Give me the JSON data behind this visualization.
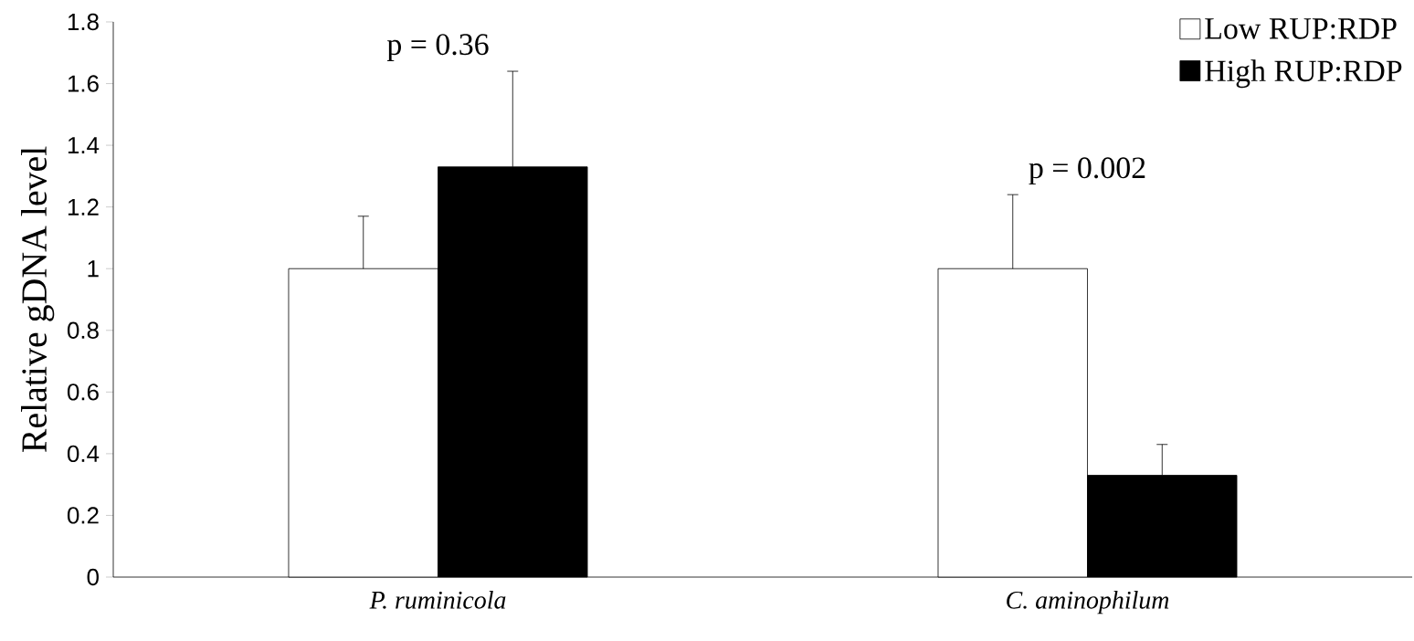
{
  "chart_data": {
    "type": "bar",
    "ylabel": "Relative gDNA level",
    "categories": [
      "P. ruminicola",
      "C. aminophilum"
    ],
    "series": [
      {
        "name": "Low RUP:RDP",
        "color": "#ffffff",
        "values": [
          1.0,
          1.0
        ],
        "errors": [
          0.17,
          0.24
        ]
      },
      {
        "name": "High RUP:RDP",
        "color": "#000000",
        "values": [
          1.33,
          0.33
        ],
        "errors": [
          0.31,
          0.1
        ]
      }
    ],
    "ylim": [
      0,
      1.8
    ],
    "yticks": [
      0,
      0.2,
      0.4,
      0.6,
      0.8,
      1,
      1.2,
      1.4,
      1.6,
      1.8
    ],
    "annotations": [
      "p = 0.36",
      "p = 0.002"
    ],
    "legend": "top right",
    "grid": false
  }
}
